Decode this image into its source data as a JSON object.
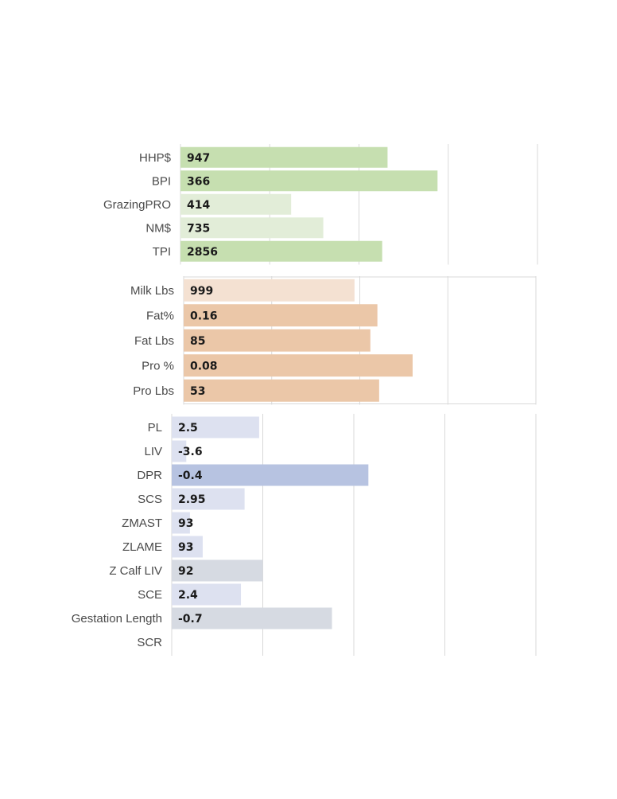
{
  "chart_data": [
    {
      "type": "bar",
      "orientation": "horizontal",
      "grid": true,
      "categories": [
        "HHP$",
        "BPI",
        "GrazingPRO",
        "NM$",
        "TPI"
      ],
      "values": [
        947,
        366,
        414,
        735,
        2856
      ],
      "bar_length_pct": [
        0.58,
        0.72,
        0.31,
        0.4,
        0.565
      ],
      "colors": [
        "#c6dfb0",
        "#c6dfb0",
        "#e2edd8",
        "#e2edd8",
        "#c6dfb0"
      ]
    },
    {
      "type": "bar",
      "orientation": "horizontal",
      "grid": true,
      "categories": [
        "Milk Lbs",
        "Fat%",
        "Fat Lbs",
        "Pro %",
        "Pro Lbs"
      ],
      "values": [
        999,
        0.16,
        85,
        0.08,
        53
      ],
      "bar_length_pct": [
        0.485,
        0.55,
        0.53,
        0.65,
        0.555
      ],
      "colors": [
        "#f4e1d2",
        "#ebc7a8",
        "#ebc7a8",
        "#ebc7a8",
        "#ebc7a8"
      ]
    },
    {
      "type": "bar",
      "orientation": "horizontal",
      "grid": true,
      "categories": [
        "PL",
        "LIV",
        "DPR",
        "SCS",
        "ZMAST",
        "ZLAME",
        "Z Calf LIV",
        "SCE",
        "Gestation Length",
        "SCR"
      ],
      "values": [
        "2.5",
        "-3.6",
        "-0.4",
        "2.95",
        "93",
        "93",
        "92",
        "2.4",
        "-0.7",
        ""
      ],
      "bar_length_pct": [
        0.24,
        0.04,
        0.54,
        0.2,
        0.05,
        0.085,
        0.25,
        0.19,
        0.44,
        0
      ],
      "colors": [
        "#dde1f0",
        "#dde1f0",
        "#b7c3e1",
        "#dde1f0",
        "#dde1f0",
        "#dde1f0",
        "#d6dae2",
        "#dde1f0",
        "#d6dae2",
        "#dde1f0"
      ]
    }
  ]
}
